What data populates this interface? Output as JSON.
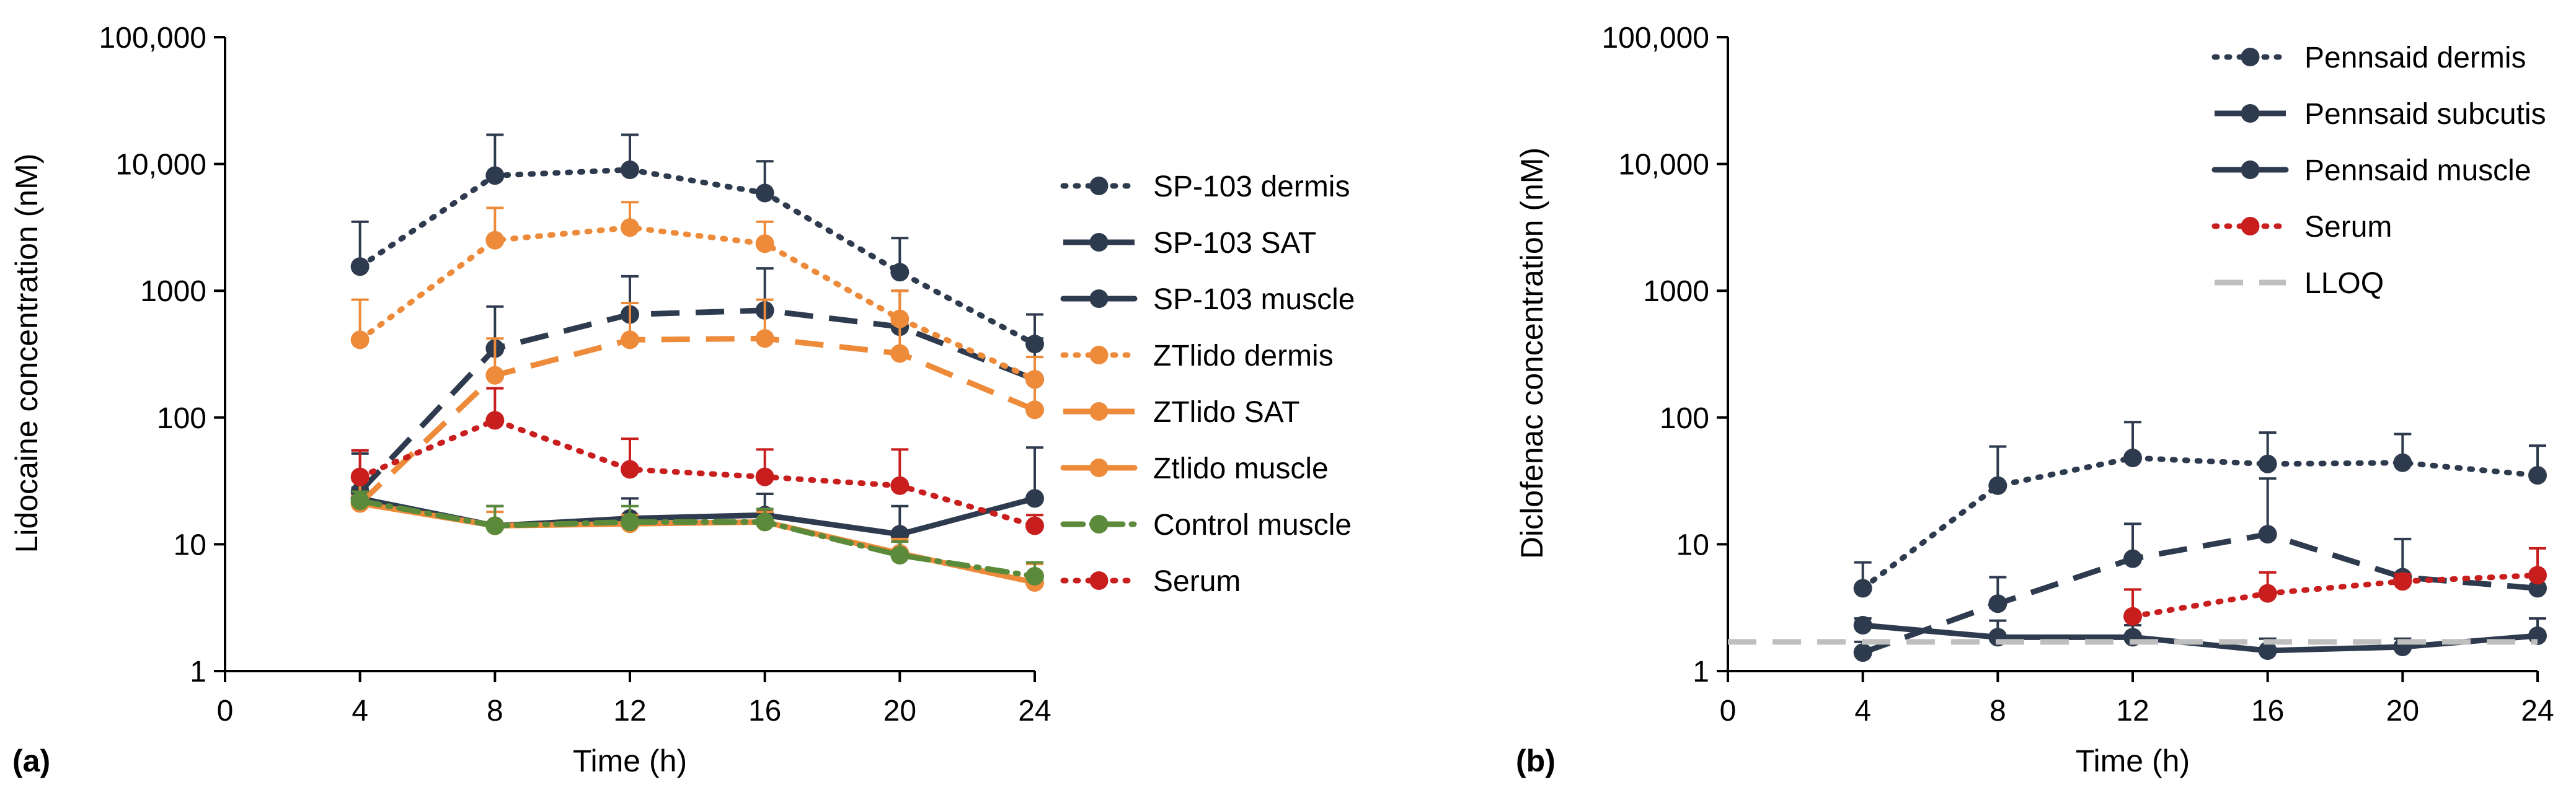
{
  "colors": {
    "navy": "#2e3b4e",
    "orange": "#ed8b3a",
    "green": "#5a8a3a",
    "red": "#c81e1e",
    "grey": "#bfbfbf"
  },
  "chart_data": [
    {
      "type": "line",
      "panel_label": "(a)",
      "xlabel": "Time (h)",
      "ylabel": "Lidocaine concentration (nM)",
      "yscale": "log",
      "xlim": [
        0,
        24
      ],
      "ylim": [
        1,
        100000
      ],
      "x_ticks": [
        "0",
        "4",
        "8",
        "12",
        "16",
        "20",
        "24"
      ],
      "y_ticks": [
        "1",
        "10",
        "100",
        "1000",
        "10,000",
        "100,000"
      ],
      "legend_position": "right",
      "series": [
        {
          "name": "SP-103 dermis",
          "color": "navy",
          "dash": "dot",
          "x": [
            4,
            8,
            12,
            16,
            20,
            24
          ],
          "y": [
            1550,
            8100,
            9000,
            5900,
            1400,
            380
          ],
          "err": [
            3500,
            17000,
            17000,
            10500,
            2600,
            650
          ]
        },
        {
          "name": "SP-103 SAT",
          "color": "navy",
          "dash": "dash",
          "x": [
            4,
            8,
            12,
            16,
            20,
            24
          ],
          "y": [
            26,
            350,
            650,
            700,
            520,
            200
          ],
          "err": [
            52,
            750,
            1300,
            1500,
            1000,
            420
          ]
        },
        {
          "name": "SP-103 muscle",
          "color": "navy",
          "dash": "solid",
          "x": [
            4,
            8,
            12,
            16,
            20,
            24
          ],
          "y": [
            23,
            14,
            16,
            17,
            12,
            23
          ],
          "err": [
            28,
            20,
            23,
            25,
            20,
            58
          ]
        },
        {
          "name": "ZTlido dermis",
          "color": "orange",
          "dash": "dot",
          "x": [
            4,
            8,
            12,
            16,
            20,
            24
          ],
          "y": [
            410,
            2500,
            3150,
            2350,
            600,
            200
          ],
          "err": [
            850,
            4500,
            5000,
            3500,
            1000,
            300
          ]
        },
        {
          "name": "ZTlido SAT",
          "color": "orange",
          "dash": "dash",
          "x": [
            4,
            8,
            12,
            16,
            20,
            24
          ],
          "y": [
            21,
            215,
            410,
            420,
            320,
            115
          ],
          "err": [
            32,
            420,
            800,
            850,
            550,
            190
          ]
        },
        {
          "name": "Ztlido muscle",
          "color": "orange",
          "dash": "solid",
          "x": [
            4,
            8,
            12,
            16,
            20,
            24
          ],
          "y": [
            21,
            14,
            14.5,
            15,
            8.5,
            5
          ],
          "err": [
            24,
            18,
            17,
            18,
            11,
            7
          ]
        },
        {
          "name": "Control muscle",
          "color": "green",
          "dash": "dashdot",
          "x": [
            4,
            8,
            12,
            16,
            20,
            24
          ],
          "y": [
            22,
            14,
            15,
            15,
            8.2,
            5.6
          ],
          "err": [
            26,
            20,
            20,
            19,
            10.5,
            7.2
          ]
        },
        {
          "name": "Serum",
          "color": "red",
          "dash": "dot",
          "x": [
            4,
            8,
            12,
            16,
            20,
            24
          ],
          "y": [
            34,
            95,
            39,
            34,
            29,
            14
          ],
          "err": [
            55,
            170,
            68,
            56,
            56,
            17
          ]
        }
      ]
    },
    {
      "type": "line",
      "panel_label": "(b)",
      "xlabel": "Time (h)",
      "ylabel": "Diclofenac concentration (nM)",
      "yscale": "log",
      "xlim": [
        0,
        24
      ],
      "ylim": [
        1,
        100000
      ],
      "x_ticks": [
        "0",
        "4",
        "8",
        "12",
        "16",
        "20",
        "24"
      ],
      "y_ticks": [
        "1",
        "10",
        "100",
        "1000",
        "10,000",
        "100,000"
      ],
      "legend_position": "top-right",
      "series": [
        {
          "name": "Pennsaid dermis",
          "color": "navy",
          "dash": "dot",
          "x": [
            4,
            8,
            12,
            16,
            20,
            24
          ],
          "y": [
            4.5,
            29,
            48,
            43,
            44,
            35
          ],
          "err": [
            7.2,
            59,
            92,
            76,
            74,
            60
          ]
        },
        {
          "name": "Pennsaid subcutis",
          "color": "navy",
          "dash": "dash",
          "x": [
            4,
            8,
            12,
            16,
            20,
            24
          ],
          "y": [
            1.4,
            3.4,
            7.7,
            12,
            5.5,
            4.5
          ],
          "err": [
            1.7,
            5.5,
            14.5,
            33,
            11,
            6
          ]
        },
        {
          "name": "Pennsaid muscle",
          "color": "navy",
          "dash": "solid",
          "x": [
            4,
            8,
            12,
            16,
            20,
            24
          ],
          "y": [
            2.3,
            1.85,
            1.85,
            1.45,
            1.55,
            1.9
          ],
          "err": [
            2.6,
            2.5,
            2.3,
            1.8,
            1.8,
            2.6
          ]
        },
        {
          "name": "Serum",
          "color": "red",
          "dash": "dot",
          "x": [
            12,
            16,
            20,
            24
          ],
          "y": [
            2.7,
            4.1,
            5.1,
            5.7
          ],
          "err": [
            4.4,
            6,
            5.8,
            9.3
          ]
        },
        {
          "name": "LLOQ",
          "color": "grey",
          "dash": "dash",
          "x": [
            0,
            24
          ],
          "y": [
            1.7,
            1.7
          ],
          "err": null
        }
      ]
    }
  ]
}
